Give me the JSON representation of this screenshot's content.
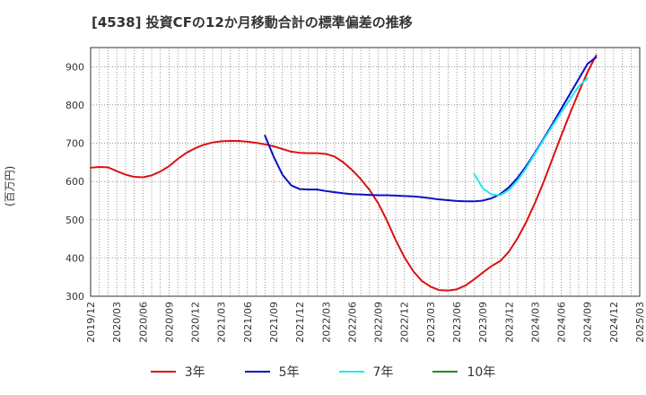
{
  "title": "[4538]  投資CFの12か月移動合計の標準偏差の推移",
  "y_unit_label": "(百万円)",
  "chart_data": {
    "type": "line",
    "title": "[4538]  投資CFの12か月移動合計の標準偏差の推移",
    "xlabel": "",
    "ylabel": "(百万円)",
    "ylim": [
      300,
      950
    ],
    "yticks": [
      300,
      400,
      500,
      600,
      700,
      800,
      900
    ],
    "x_tick_labels": [
      "2019/12",
      "2020/03",
      "2020/06",
      "2020/09",
      "2020/12",
      "2021/03",
      "2021/06",
      "2021/09",
      "2021/12",
      "2022/03",
      "2022/06",
      "2022/09",
      "2022/12",
      "2023/03",
      "2023/06",
      "2023/09",
      "2023/12",
      "2024/03",
      "2024/06",
      "2024/09",
      "2024/12",
      "2025/03"
    ],
    "grid": true,
    "legend_position": "bottom",
    "series": [
      {
        "name": "3年",
        "color": "#dd1111",
        "points": [
          [
            "2019/12",
            636
          ],
          [
            "2020/01",
            638
          ],
          [
            "2020/02",
            637
          ],
          [
            "2020/03",
            627
          ],
          [
            "2020/04",
            618
          ],
          [
            "2020/05",
            612
          ],
          [
            "2020/06",
            611
          ],
          [
            "2020/07",
            616
          ],
          [
            "2020/08",
            626
          ],
          [
            "2020/09",
            640
          ],
          [
            "2020/10",
            659
          ],
          [
            "2020/11",
            675
          ],
          [
            "2020/12",
            687
          ],
          [
            "2021/01",
            696
          ],
          [
            "2021/02",
            702
          ],
          [
            "2021/03",
            705
          ],
          [
            "2021/04",
            706
          ],
          [
            "2021/05",
            706
          ],
          [
            "2021/06",
            704
          ],
          [
            "2021/07",
            701
          ],
          [
            "2021/08",
            697
          ],
          [
            "2021/09",
            692
          ],
          [
            "2021/10",
            685
          ],
          [
            "2021/11",
            678
          ],
          [
            "2021/12",
            675
          ],
          [
            "2022/01",
            674
          ],
          [
            "2022/02",
            674
          ],
          [
            "2022/03",
            672
          ],
          [
            "2022/04",
            665
          ],
          [
            "2022/05",
            650
          ],
          [
            "2022/06",
            630
          ],
          [
            "2022/07",
            606
          ],
          [
            "2022/08",
            578
          ],
          [
            "2022/09",
            543
          ],
          [
            "2022/10",
            498
          ],
          [
            "2022/11",
            447
          ],
          [
            "2022/12",
            402
          ],
          [
            "2023/01",
            366
          ],
          [
            "2023/02",
            340
          ],
          [
            "2023/03",
            325
          ],
          [
            "2023/04",
            316
          ],
          [
            "2023/05",
            315
          ],
          [
            "2023/06",
            318
          ],
          [
            "2023/07",
            328
          ],
          [
            "2023/08",
            344
          ],
          [
            "2023/09",
            362
          ],
          [
            "2023/10",
            379
          ],
          [
            "2023/11",
            392
          ],
          [
            "2023/12",
            417
          ],
          [
            "2024/01",
            452
          ],
          [
            "2024/02",
            495
          ],
          [
            "2024/03",
            545
          ],
          [
            "2024/04",
            600
          ],
          [
            "2024/05",
            660
          ],
          [
            "2024/06",
            720
          ],
          [
            "2024/07",
            778
          ],
          [
            "2024/08",
            833
          ],
          [
            "2024/09",
            885
          ],
          [
            "2024/10",
            930
          ]
        ]
      },
      {
        "name": "5年",
        "color": "#0b10c6",
        "points": [
          [
            "2021/08",
            720
          ],
          [
            "2021/09",
            665
          ],
          [
            "2021/10",
            618
          ],
          [
            "2021/11",
            590
          ],
          [
            "2021/12",
            580
          ],
          [
            "2022/01",
            579
          ],
          [
            "2022/02",
            579
          ],
          [
            "2022/03",
            575
          ],
          [
            "2022/04",
            572
          ],
          [
            "2022/05",
            569
          ],
          [
            "2022/06",
            567
          ],
          [
            "2022/07",
            566
          ],
          [
            "2022/08",
            565
          ],
          [
            "2022/09",
            564
          ],
          [
            "2022/10",
            564
          ],
          [
            "2022/11",
            563
          ],
          [
            "2022/12",
            562
          ],
          [
            "2023/01",
            561
          ],
          [
            "2023/02",
            559
          ],
          [
            "2023/03",
            556
          ],
          [
            "2023/04",
            553
          ],
          [
            "2023/05",
            551
          ],
          [
            "2023/06",
            549
          ],
          [
            "2023/07",
            548
          ],
          [
            "2023/08",
            548
          ],
          [
            "2023/09",
            550
          ],
          [
            "2023/10",
            556
          ],
          [
            "2023/11",
            567
          ],
          [
            "2023/12",
            585
          ],
          [
            "2024/01",
            610
          ],
          [
            "2024/02",
            641
          ],
          [
            "2024/03",
            676
          ],
          [
            "2024/04",
            713
          ],
          [
            "2024/05",
            751
          ],
          [
            "2024/06",
            790
          ],
          [
            "2024/07",
            829
          ],
          [
            "2024/08",
            868
          ],
          [
            "2024/09",
            907
          ],
          [
            "2024/10",
            925
          ]
        ]
      },
      {
        "name": "7年",
        "color": "#22e8f2",
        "points": [
          [
            "2023/08",
            620
          ],
          [
            "2023/09",
            582
          ],
          [
            "2023/10",
            566
          ],
          [
            "2023/11",
            564
          ],
          [
            "2023/12",
            578
          ],
          [
            "2024/01",
            603
          ],
          [
            "2024/02",
            636
          ],
          [
            "2024/03",
            673
          ],
          [
            "2024/04",
            710
          ],
          [
            "2024/05",
            746
          ],
          [
            "2024/06",
            781
          ],
          [
            "2024/07",
            815
          ],
          [
            "2024/08",
            849
          ],
          [
            "2024/09",
            870
          ]
        ]
      },
      {
        "name": "10年",
        "color": "#1f8a1f",
        "points": []
      }
    ]
  }
}
